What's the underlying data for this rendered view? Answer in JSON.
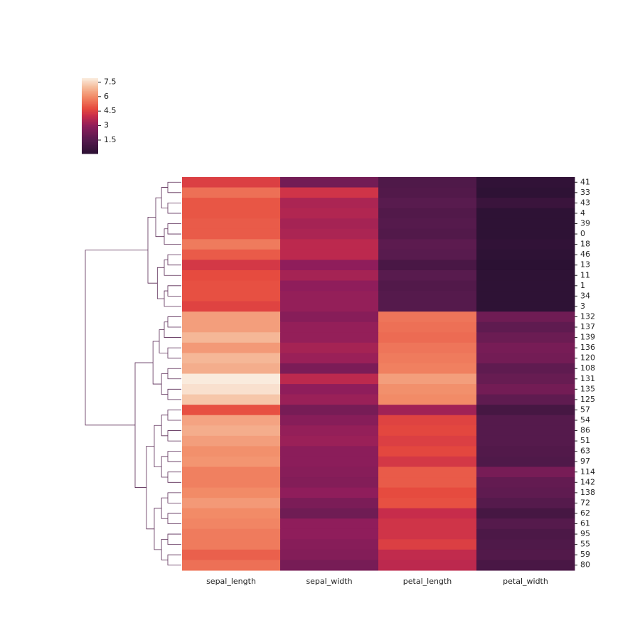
{
  "chart_data": {
    "type": "heatmap",
    "categories": [
      "sepal_length",
      "sepal_width",
      "petal_length",
      "petal_width"
    ],
    "rows": [
      "41",
      "33",
      "43",
      "4",
      "39",
      "0",
      "18",
      "46",
      "13",
      "11",
      "1",
      "34",
      "3",
      "132",
      "137",
      "139",
      "136",
      "120",
      "108",
      "131",
      "135",
      "125",
      "57",
      "54",
      "86",
      "51",
      "63",
      "97",
      "114",
      "142",
      "138",
      "72",
      "62",
      "61",
      "95",
      "55",
      "59",
      "80"
    ],
    "values": [
      [
        4.5,
        2.3,
        1.3,
        0.3
      ],
      [
        5.5,
        4.2,
        1.4,
        0.2
      ],
      [
        5.0,
        3.5,
        1.6,
        0.6
      ],
      [
        5.0,
        3.6,
        1.4,
        0.2
      ],
      [
        5.1,
        3.4,
        1.5,
        0.2
      ],
      [
        5.1,
        3.5,
        1.4,
        0.2
      ],
      [
        5.7,
        3.8,
        1.7,
        0.3
      ],
      [
        5.1,
        3.8,
        1.6,
        0.2
      ],
      [
        4.3,
        3.0,
        1.1,
        0.1
      ],
      [
        4.8,
        3.4,
        1.6,
        0.2
      ],
      [
        4.9,
        3.0,
        1.4,
        0.2
      ],
      [
        4.9,
        3.1,
        1.5,
        0.2
      ],
      [
        4.6,
        3.1,
        1.5,
        0.2
      ],
      [
        6.4,
        2.8,
        5.6,
        2.2
      ],
      [
        6.4,
        3.1,
        5.5,
        1.8
      ],
      [
        6.9,
        3.1,
        5.4,
        2.1
      ],
      [
        6.3,
        3.4,
        5.6,
        2.4
      ],
      [
        6.9,
        3.2,
        5.7,
        2.3
      ],
      [
        6.7,
        2.5,
        5.8,
        1.8
      ],
      [
        7.9,
        3.8,
        6.4,
        2.0
      ],
      [
        7.7,
        3.0,
        6.1,
        2.3
      ],
      [
        7.2,
        3.2,
        6.0,
        1.8
      ],
      [
        4.9,
        2.4,
        3.3,
        1.0
      ],
      [
        6.5,
        2.8,
        4.6,
        1.5
      ],
      [
        6.7,
        3.1,
        4.7,
        1.5
      ],
      [
        6.4,
        3.2,
        4.5,
        1.5
      ],
      [
        6.1,
        2.9,
        4.7,
        1.4
      ],
      [
        6.2,
        2.9,
        4.3,
        1.3
      ],
      [
        5.8,
        2.8,
        5.1,
        2.4
      ],
      [
        5.8,
        2.7,
        5.1,
        1.9
      ],
      [
        6.0,
        3.0,
        4.8,
        1.8
      ],
      [
        6.3,
        2.5,
        4.9,
        1.5
      ],
      [
        6.0,
        2.2,
        4.0,
        1.0
      ],
      [
        5.9,
        3.0,
        4.2,
        1.5
      ],
      [
        5.7,
        3.0,
        4.2,
        1.2
      ],
      [
        5.7,
        2.8,
        4.5,
        1.3
      ],
      [
        5.2,
        2.7,
        3.9,
        1.4
      ],
      [
        5.5,
        2.4,
        3.8,
        1.1
      ]
    ],
    "clim": [
      0.1,
      7.9
    ],
    "cticks": [
      1.5,
      3.0,
      4.5,
      6.0,
      7.5
    ]
  }
}
